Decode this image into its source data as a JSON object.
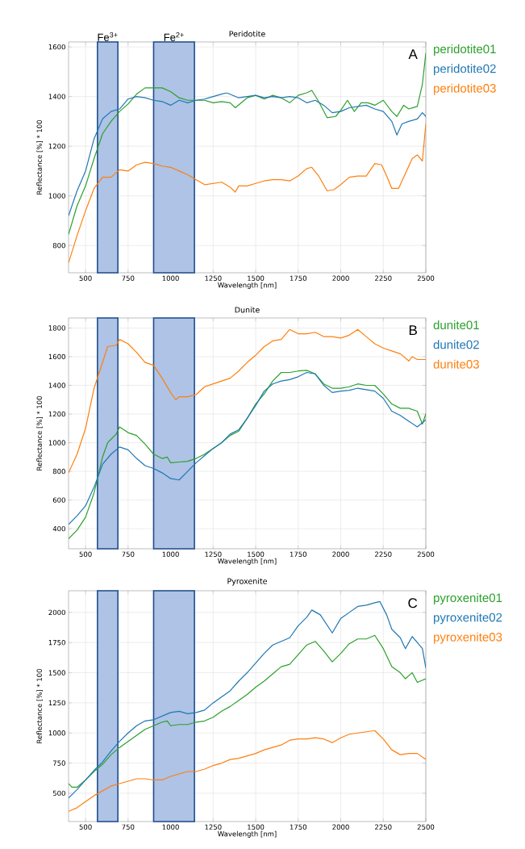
{
  "chart_data": [
    {
      "type": "line",
      "title": "Peridotite",
      "xlabel": "Wavelength [nm]",
      "ylabel": "Reflectance [%] * 100",
      "xlim": [
        400,
        2500
      ],
      "ylim": [
        690,
        1620
      ],
      "xticks": [
        500,
        750,
        1000,
        1250,
        1500,
        1750,
        2000,
        2250,
        2500
      ],
      "yticks": [
        800,
        1000,
        1200,
        1400,
        1600
      ],
      "grid": true,
      "annotations": [
        "A"
      ],
      "bands": [
        {
          "axis": "x",
          "from": 570,
          "to": 690,
          "label": "Fe$^{3+}$",
          "color": "#aec3e6"
        },
        {
          "axis": "x",
          "from": 900,
          "to": 1140,
          "label": "Fe$^{2+}$",
          "color": "#aec3e6"
        }
      ],
      "series": [
        {
          "name": "peridotite01",
          "color": "#2ca02c",
          "x": [
            400,
            450,
            500,
            550,
            600,
            650,
            700,
            750,
            800,
            850,
            900,
            950,
            1000,
            1050,
            1100,
            1150,
            1200,
            1250,
            1300,
            1350,
            1380,
            1450,
            1500,
            1550,
            1600,
            1650,
            1700,
            1750,
            1800,
            1830,
            1870,
            1920,
            1970,
            2000,
            2040,
            2080,
            2120,
            2160,
            2200,
            2250,
            2300,
            2330,
            2370,
            2400,
            2450,
            2480,
            2500
          ],
          "values": [
            845,
            960,
            1040,
            1150,
            1250,
            1300,
            1340,
            1370,
            1410,
            1435,
            1435,
            1435,
            1420,
            1395,
            1385,
            1385,
            1385,
            1375,
            1380,
            1375,
            1355,
            1395,
            1405,
            1390,
            1405,
            1395,
            1375,
            1405,
            1415,
            1425,
            1380,
            1315,
            1320,
            1345,
            1385,
            1340,
            1375,
            1375,
            1365,
            1385,
            1340,
            1320,
            1365,
            1350,
            1360,
            1450,
            1575
          ]
        },
        {
          "name": "peridotite02",
          "color": "#1f77b4",
          "x": [
            400,
            450,
            500,
            550,
            600,
            650,
            700,
            750,
            800,
            850,
            900,
            950,
            1000,
            1050,
            1100,
            1150,
            1200,
            1250,
            1300,
            1330,
            1400,
            1450,
            1500,
            1550,
            1600,
            1650,
            1700,
            1750,
            1800,
            1850,
            1900,
            1950,
            2000,
            2050,
            2100,
            2150,
            2200,
            2250,
            2300,
            2330,
            2360,
            2400,
            2450,
            2480,
            2500
          ],
          "values": [
            920,
            1020,
            1100,
            1230,
            1310,
            1340,
            1350,
            1390,
            1400,
            1395,
            1385,
            1380,
            1365,
            1385,
            1375,
            1385,
            1390,
            1400,
            1410,
            1415,
            1395,
            1400,
            1405,
            1395,
            1400,
            1395,
            1400,
            1395,
            1375,
            1385,
            1365,
            1335,
            1340,
            1355,
            1360,
            1365,
            1350,
            1340,
            1300,
            1245,
            1290,
            1300,
            1310,
            1335,
            1320
          ]
        },
        {
          "name": "peridotite03",
          "color": "#ff7f0e",
          "x": [
            400,
            450,
            500,
            550,
            600,
            650,
            700,
            750,
            800,
            850,
            900,
            950,
            1000,
            1050,
            1100,
            1150,
            1200,
            1250,
            1300,
            1350,
            1380,
            1400,
            1450,
            1500,
            1550,
            1600,
            1650,
            1700,
            1750,
            1800,
            1830,
            1870,
            1920,
            1960,
            2000,
            2050,
            2100,
            2150,
            2200,
            2240,
            2270,
            2300,
            2340,
            2380,
            2420,
            2450,
            2480,
            2500
          ],
          "values": [
            730,
            840,
            940,
            1030,
            1075,
            1075,
            1105,
            1100,
            1125,
            1135,
            1130,
            1120,
            1115,
            1100,
            1085,
            1065,
            1045,
            1050,
            1055,
            1035,
            1015,
            1040,
            1040,
            1050,
            1060,
            1065,
            1065,
            1060,
            1080,
            1110,
            1115,
            1080,
            1020,
            1025,
            1045,
            1075,
            1080,
            1080,
            1130,
            1125,
            1080,
            1030,
            1030,
            1090,
            1150,
            1165,
            1140,
            1290
          ]
        }
      ]
    },
    {
      "type": "line",
      "title": "Dunite",
      "xlabel": "Wavelength [nm]",
      "ylabel": "Reflectance [%] * 100",
      "xlim": [
        400,
        2500
      ],
      "ylim": [
        260,
        1870
      ],
      "xticks": [
        500,
        750,
        1000,
        1250,
        1500,
        1750,
        2000,
        2250,
        2500
      ],
      "yticks": [
        400,
        600,
        800,
        1000,
        1200,
        1400,
        1600,
        1800
      ],
      "grid": true,
      "annotations": [
        "B"
      ],
      "bands": [
        {
          "axis": "x",
          "from": 570,
          "to": 690,
          "color": "#aec3e6"
        },
        {
          "axis": "x",
          "from": 900,
          "to": 1140,
          "color": "#aec3e6"
        }
      ],
      "series": [
        {
          "name": "dunite01",
          "color": "#2ca02c",
          "x": [
            400,
            450,
            500,
            550,
            600,
            630,
            680,
            700,
            750,
            800,
            850,
            900,
            950,
            980,
            1000,
            1050,
            1100,
            1150,
            1200,
            1250,
            1300,
            1350,
            1400,
            1450,
            1500,
            1550,
            1600,
            1650,
            1700,
            1750,
            1800,
            1850,
            1900,
            1950,
            2000,
            2050,
            2100,
            2150,
            2200,
            2250,
            2300,
            2350,
            2400,
            2450,
            2480,
            2500
          ],
          "values": [
            330,
            390,
            480,
            650,
            900,
            1000,
            1060,
            1110,
            1070,
            1050,
            990,
            920,
            890,
            900,
            860,
            865,
            870,
            890,
            920,
            960,
            1000,
            1050,
            1080,
            1170,
            1270,
            1340,
            1430,
            1490,
            1490,
            1500,
            1505,
            1480,
            1410,
            1380,
            1380,
            1390,
            1410,
            1400,
            1400,
            1340,
            1270,
            1240,
            1240,
            1220,
            1130,
            1200
          ]
        },
        {
          "name": "dunite02",
          "color": "#1f77b4",
          "x": [
            400,
            450,
            500,
            550,
            600,
            650,
            700,
            750,
            800,
            850,
            900,
            950,
            1000,
            1050,
            1100,
            1150,
            1200,
            1250,
            1300,
            1350,
            1400,
            1450,
            1500,
            1550,
            1600,
            1650,
            1700,
            1750,
            1800,
            1850,
            1900,
            1950,
            2000,
            2050,
            2100,
            2150,
            2200,
            2250,
            2300,
            2350,
            2400,
            2450,
            2480,
            2500
          ],
          "values": [
            430,
            490,
            560,
            690,
            850,
            920,
            970,
            950,
            890,
            840,
            820,
            790,
            750,
            740,
            800,
            860,
            910,
            960,
            1000,
            1060,
            1090,
            1170,
            1260,
            1360,
            1410,
            1430,
            1440,
            1460,
            1490,
            1480,
            1400,
            1350,
            1360,
            1365,
            1380,
            1370,
            1360,
            1310,
            1220,
            1190,
            1150,
            1110,
            1140,
            1160
          ]
        },
        {
          "name": "dunite03",
          "color": "#ff7f0e",
          "x": [
            400,
            450,
            500,
            550,
            600,
            630,
            680,
            700,
            750,
            800,
            850,
            900,
            950,
            1000,
            1030,
            1050,
            1100,
            1150,
            1200,
            1250,
            1300,
            1350,
            1400,
            1450,
            1500,
            1550,
            1600,
            1650,
            1700,
            1750,
            1800,
            1850,
            1900,
            1950,
            2000,
            2050,
            2100,
            2150,
            2200,
            2250,
            2300,
            2350,
            2400,
            2420,
            2450,
            2500
          ],
          "values": [
            790,
            920,
            1100,
            1380,
            1560,
            1670,
            1680,
            1720,
            1690,
            1630,
            1560,
            1540,
            1450,
            1350,
            1300,
            1320,
            1320,
            1335,
            1390,
            1410,
            1430,
            1450,
            1500,
            1560,
            1610,
            1670,
            1710,
            1720,
            1790,
            1760,
            1760,
            1770,
            1740,
            1740,
            1730,
            1750,
            1790,
            1740,
            1690,
            1660,
            1640,
            1620,
            1570,
            1600,
            1580,
            1580
          ]
        }
      ]
    },
    {
      "type": "line",
      "title": "Pyroxenite",
      "xlabel": "Wavelength [nm]",
      "ylabel": "Reflectance [%] * 100",
      "xlim": [
        400,
        2500
      ],
      "ylim": [
        265,
        2180
      ],
      "xticks": [
        500,
        750,
        1000,
        1250,
        1500,
        1750,
        2000,
        2250,
        2500
      ],
      "yticks": [
        500,
        750,
        1000,
        1250,
        1500,
        1750,
        2000
      ],
      "grid": true,
      "annotations": [
        "C"
      ],
      "bands": [
        {
          "axis": "x",
          "from": 570,
          "to": 690,
          "color": "#aec3e6"
        },
        {
          "axis": "x",
          "from": 900,
          "to": 1140,
          "color": "#aec3e6"
        }
      ],
      "series": [
        {
          "name": "pyroxenite01",
          "color": "#2ca02c",
          "x": [
            400,
            420,
            450,
            500,
            550,
            600,
            650,
            700,
            750,
            800,
            850,
            900,
            950,
            980,
            1000,
            1050,
            1100,
            1150,
            1200,
            1250,
            1300,
            1350,
            1400,
            1450,
            1500,
            1550,
            1600,
            1650,
            1700,
            1750,
            1800,
            1850,
            1900,
            1950,
            2000,
            2050,
            2100,
            2150,
            2200,
            2250,
            2300,
            2350,
            2380,
            2420,
            2450,
            2500
          ],
          "values": [
            580,
            550,
            550,
            610,
            680,
            740,
            820,
            880,
            930,
            980,
            1030,
            1060,
            1090,
            1100,
            1060,
            1070,
            1070,
            1090,
            1100,
            1130,
            1180,
            1220,
            1270,
            1320,
            1380,
            1430,
            1490,
            1550,
            1570,
            1650,
            1730,
            1760,
            1680,
            1590,
            1660,
            1740,
            1780,
            1780,
            1810,
            1700,
            1550,
            1500,
            1450,
            1500,
            1420,
            1450
          ]
        },
        {
          "name": "pyroxenite02",
          "color": "#1f77b4",
          "x": [
            400,
            450,
            500,
            550,
            600,
            650,
            700,
            750,
            800,
            850,
            900,
            950,
            1000,
            1050,
            1100,
            1150,
            1200,
            1250,
            1300,
            1350,
            1400,
            1450,
            1500,
            1550,
            1600,
            1650,
            1700,
            1750,
            1800,
            1830,
            1880,
            1950,
            2000,
            2050,
            2100,
            2150,
            2200,
            2230,
            2270,
            2300,
            2350,
            2380,
            2420,
            2450,
            2480,
            2500
          ],
          "values": [
            460,
            530,
            610,
            690,
            760,
            850,
            930,
            1000,
            1060,
            1100,
            1110,
            1140,
            1170,
            1180,
            1160,
            1170,
            1190,
            1250,
            1300,
            1350,
            1430,
            1500,
            1580,
            1660,
            1730,
            1760,
            1790,
            1890,
            1960,
            2020,
            1980,
            1830,
            1950,
            2000,
            2050,
            2060,
            2080,
            2090,
            1980,
            1860,
            1790,
            1700,
            1800,
            1750,
            1700,
            1540
          ]
        },
        {
          "name": "pyroxenite03",
          "color": "#ff7f0e",
          "x": [
            400,
            450,
            500,
            550,
            600,
            650,
            700,
            750,
            800,
            850,
            900,
            950,
            1000,
            1050,
            1100,
            1150,
            1200,
            1250,
            1300,
            1350,
            1400,
            1450,
            1500,
            1550,
            1600,
            1650,
            1700,
            1750,
            1800,
            1850,
            1900,
            1950,
            2000,
            2050,
            2100,
            2150,
            2200,
            2250,
            2300,
            2350,
            2400,
            2450,
            2500
          ],
          "values": [
            350,
            380,
            430,
            480,
            520,
            560,
            580,
            600,
            620,
            620,
            610,
            610,
            640,
            660,
            680,
            680,
            700,
            730,
            750,
            780,
            790,
            810,
            830,
            860,
            880,
            900,
            940,
            950,
            950,
            960,
            950,
            920,
            960,
            990,
            1000,
            1010,
            1020,
            950,
            860,
            820,
            830,
            830,
            780
          ]
        }
      ]
    }
  ]
}
